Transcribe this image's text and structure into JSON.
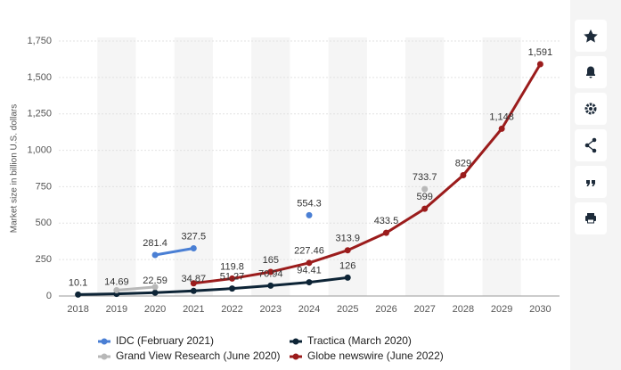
{
  "chart_data": {
    "type": "line",
    "y_label": "Market size in billion U.S. dollars",
    "categories": [
      "2018",
      "2019",
      "2020",
      "2021",
      "2022",
      "2023",
      "2024",
      "2025",
      "2026",
      "2027",
      "2028",
      "2029",
      "2030"
    ],
    "ylim": [
      0,
      1750
    ],
    "yticks": [
      0,
      250,
      500,
      750,
      {
        "value": 1000,
        "label": "1,000"
      },
      {
        "value": 1250,
        "label": "1,250"
      },
      {
        "value": 1500,
        "label": "1,500"
      },
      {
        "value": 1750,
        "label": "1,750"
      }
    ],
    "grid": true,
    "legend": "bottom",
    "series": [
      {
        "name": "IDC (February 2021)",
        "color": "#4a7fd4",
        "values": [
          null,
          null,
          281.4,
          327.5,
          null,
          null,
          554.3,
          null,
          null,
          null,
          null,
          null,
          null
        ],
        "value_labels": [
          null,
          null,
          "281.4",
          "327.5",
          null,
          null,
          "554.3",
          null,
          null,
          null,
          null,
          null,
          null
        ]
      },
      {
        "name": "Tractica (March 2020)",
        "color": "#0d2436",
        "values": [
          10.1,
          14.69,
          22.59,
          34.87,
          51.27,
          70.94,
          94.41,
          126,
          null,
          null,
          null,
          null,
          null
        ],
        "value_labels": [
          "10.1",
          "14.69",
          "22.59",
          "34.87",
          "51.27",
          "70.94",
          "94.41",
          "126",
          null,
          null,
          null,
          null,
          null
        ]
      },
      {
        "name": "Grand View Research (June 2020)",
        "color": "#b8b8b8",
        "values": [
          null,
          40,
          62,
          null,
          null,
          null,
          null,
          null,
          null,
          733.7,
          null,
          null,
          null
        ],
        "value_labels": [
          null,
          null,
          null,
          null,
          null,
          null,
          null,
          null,
          null,
          "733.7",
          null,
          null,
          null
        ]
      },
      {
        "name": "Globe newswire (June 2022)",
        "color": "#9b1c1c",
        "values": [
          null,
          null,
          null,
          87,
          119.8,
          165,
          227.46,
          313.9,
          433.5,
          599,
          829,
          1148,
          1591
        ],
        "value_labels": [
          null,
          null,
          null,
          null,
          "119.8",
          "165",
          "227.46",
          "313.9",
          "433.5",
          "599",
          "829",
          "1,148",
          "1,591"
        ]
      }
    ]
  }
}
